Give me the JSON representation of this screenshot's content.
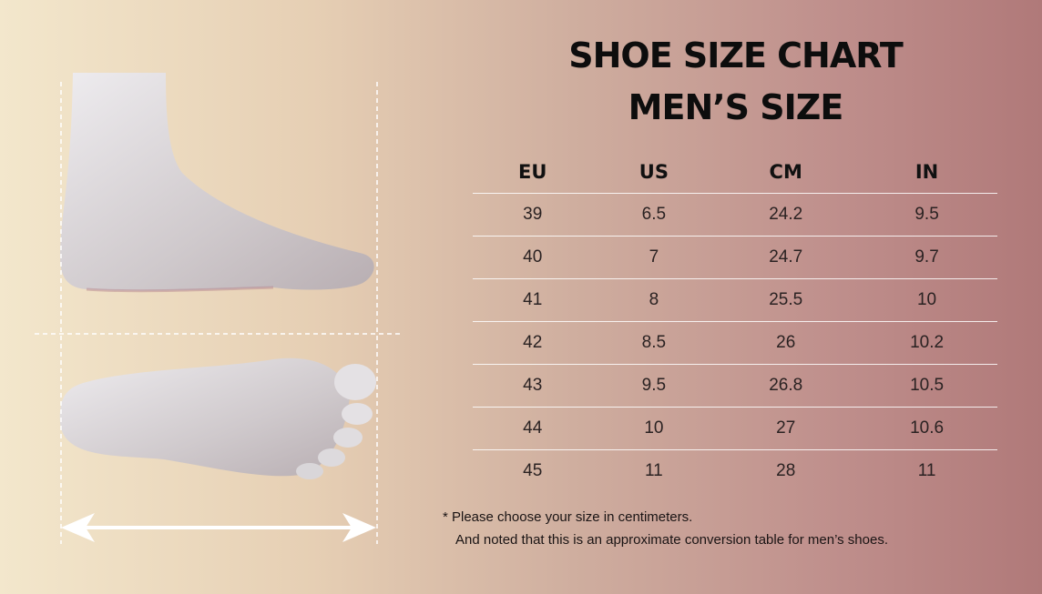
{
  "title": {
    "line1": "SHOE SIZE CHART",
    "line2": "MEN’S SIZE"
  },
  "table": {
    "headers": [
      "EU",
      "US",
      "CM",
      "IN"
    ],
    "rows": [
      [
        "39",
        "6.5",
        "24.2",
        "9.5"
      ],
      [
        "40",
        "7",
        "24.7",
        "9.7"
      ],
      [
        "41",
        "8",
        "25.5",
        "10"
      ],
      [
        "42",
        "8.5",
        "26",
        "10.2"
      ],
      [
        "43",
        "9.5",
        "26.8",
        "10.5"
      ],
      [
        "44",
        "10",
        "27",
        "10.6"
      ],
      [
        "45",
        "11",
        "28",
        "11"
      ]
    ]
  },
  "notes": {
    "line1": "* Please choose your size in centimeters.",
    "line2": "And noted that this is an approximate conversion table for men’s shoes."
  },
  "colors": {
    "background_left": "#f3e7cc",
    "background_right": "#b07979",
    "text": "#111111"
  }
}
